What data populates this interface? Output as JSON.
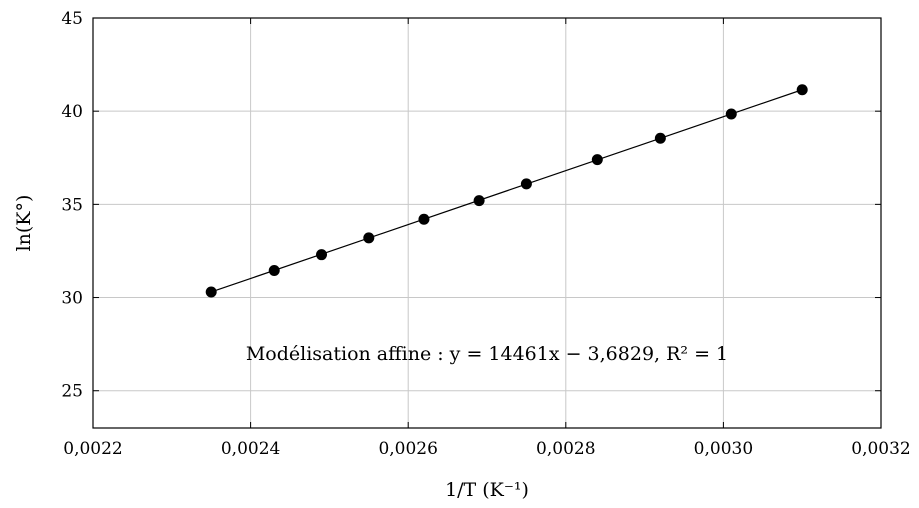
{
  "chart_data": {
    "type": "scatter",
    "xlabel": "1/T (K⁻¹)",
    "ylabel": "ln(K°)",
    "xlim": [
      0.0022,
      0.0032
    ],
    "ylim": [
      23,
      45
    ],
    "xticks": [
      0.0022,
      0.0024,
      0.0026,
      0.0028,
      0.003,
      0.0032
    ],
    "xtick_labels": [
      "0,0022",
      "0,0024",
      "0,0026",
      "0,0028",
      "0,0030",
      "0,0032"
    ],
    "yticks": [
      25,
      30,
      35,
      40,
      45
    ],
    "ytick_labels": [
      "25",
      "30",
      "35",
      "40",
      "45"
    ],
    "grid": true,
    "series": [
      {
        "x": [
          0.00235,
          0.00243,
          0.00249,
          0.00255,
          0.00262,
          0.00269,
          0.00275,
          0.00284,
          0.00292,
          0.00301,
          0.0031
        ],
        "y": [
          30.3,
          31.45,
          32.3,
          33.2,
          34.2,
          35.2,
          36.1,
          37.4,
          38.55,
          39.85,
          41.15
        ],
        "marker": "circle",
        "color": "#000000"
      }
    ],
    "fit_line": {
      "x": [
        0.00235,
        0.0031
      ],
      "y": [
        30.3,
        41.15
      ],
      "color": "#000000"
    },
    "annotation": "Modélisation affine : y = 14461x − 3,6829, R² = 1"
  }
}
